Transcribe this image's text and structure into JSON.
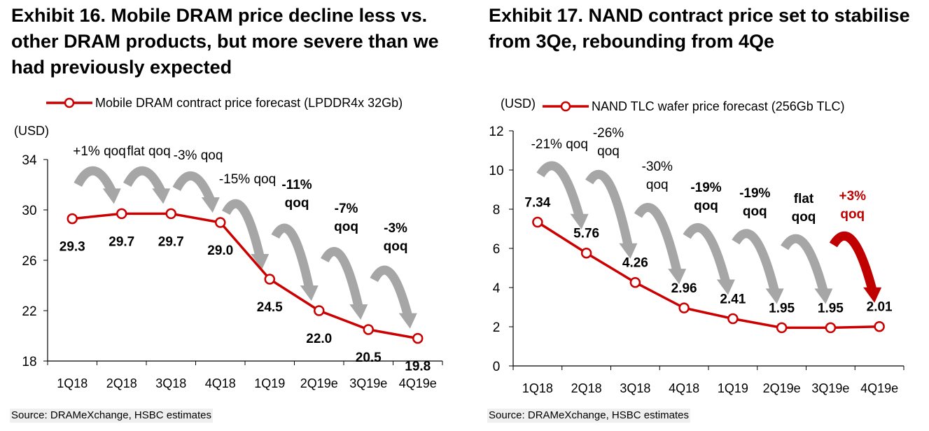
{
  "exhibits": [
    {
      "title": "Exhibit 16. Mobile DRAM price decline less vs. other DRAM products, but more severe than we had previously expected",
      "source": "Source: DRAMeXchange, HSBC estimates",
      "legend_label": "Mobile DRAM  contract price forecast (LPDDR4x 32Gb)",
      "unit_label": "(USD)",
      "colors": {
        "line": "#cc0000",
        "arrow": "#a6a6a6",
        "arrow_highlight": "#c00000",
        "axis": "#000000"
      },
      "chart_data": {
        "type": "line",
        "categories": [
          "1Q18",
          "2Q18",
          "3Q18",
          "4Q18",
          "1Q19",
          "2Q19e",
          "3Q19e",
          "4Q19e"
        ],
        "series": [
          {
            "name": "Mobile DRAM  contract price forecast (LPDDR4x 32Gb)",
            "values": [
              29.3,
              29.7,
              29.7,
              29.0,
              24.5,
              22.0,
              20.5,
              19.8
            ]
          }
        ],
        "data_labels": [
          "29.3",
          "29.7",
          "29.7",
          "29.0",
          "24.5",
          "22.0",
          "20.5",
          "19.8"
        ],
        "ylabel": "(USD)",
        "ylim": [
          18,
          34
        ],
        "yticks": [
          18,
          22,
          26,
          30,
          34
        ],
        "ytick_labels": [
          "18",
          "22",
          "26",
          "30",
          "34"
        ],
        "grid": false,
        "legend_position": "top",
        "annotations": [
          {
            "text": "+1% qoq",
            "from": 0,
            "bold": false,
            "highlight": false
          },
          {
            "text": "flat qoq",
            "from": 1,
            "bold": false,
            "highlight": false
          },
          {
            "text": "-3% qoq",
            "from": 2,
            "bold": false,
            "highlight": false
          },
          {
            "text": "-15% qoq",
            "from": 3,
            "bold": false,
            "highlight": false
          },
          {
            "text": "-11% qoq",
            "from": 4,
            "bold": true,
            "highlight": false
          },
          {
            "text": "-7% qoq",
            "from": 5,
            "bold": true,
            "highlight": false
          },
          {
            "text": "-3% qoq",
            "from": 6,
            "bold": true,
            "highlight": false
          }
        ]
      }
    },
    {
      "title": "Exhibit 17. NAND contract price set to stabilise from 3Qe, rebounding from 4Qe",
      "source": "Source: DRAMeXchange, HSBC estimates",
      "legend_label": "NAND TLC wafer price forecast (256Gb TLC)",
      "unit_label": "(USD)",
      "colors": {
        "line": "#cc0000",
        "arrow": "#a6a6a6",
        "arrow_highlight": "#c00000",
        "axis": "#000000"
      },
      "chart_data": {
        "type": "line",
        "categories": [
          "1Q18",
          "2Q18",
          "3Q18",
          "4Q18",
          "1Q19",
          "2Q19e",
          "3Q19e",
          "4Q19e"
        ],
        "series": [
          {
            "name": "NAND TLC wafer price forecast (256Gb TLC)",
            "values": [
              7.34,
              5.76,
              4.26,
              2.96,
              2.41,
              1.95,
              1.95,
              2.01
            ]
          }
        ],
        "data_labels": [
          "7.34",
          "5.76",
          "4.26",
          "2.96",
          "2.41",
          "1.95",
          "1.95",
          "2.01"
        ],
        "ylabel": "(USD)",
        "ylim": [
          0,
          12
        ],
        "yticks": [
          0,
          2,
          4,
          6,
          8,
          10,
          12
        ],
        "ytick_labels": [
          "0",
          "2",
          "4",
          "6",
          "8",
          "10",
          "12"
        ],
        "grid": false,
        "legend_position": "top",
        "annotations": [
          {
            "text": "-21% qoq",
            "from": 0,
            "bold": false,
            "highlight": false
          },
          {
            "text": "-26% qoq",
            "from": 1,
            "bold": false,
            "highlight": false
          },
          {
            "text": "-30% qoq",
            "from": 2,
            "bold": false,
            "highlight": false
          },
          {
            "text": "-19% qoq",
            "from": 3,
            "bold": true,
            "highlight": false
          },
          {
            "text": "-19% qoq",
            "from": 4,
            "bold": true,
            "highlight": false
          },
          {
            "text": "flat qoq",
            "from": 5,
            "bold": true,
            "highlight": false
          },
          {
            "text": "+3% qoq",
            "from": 6,
            "bold": true,
            "highlight": true
          }
        ]
      }
    }
  ]
}
